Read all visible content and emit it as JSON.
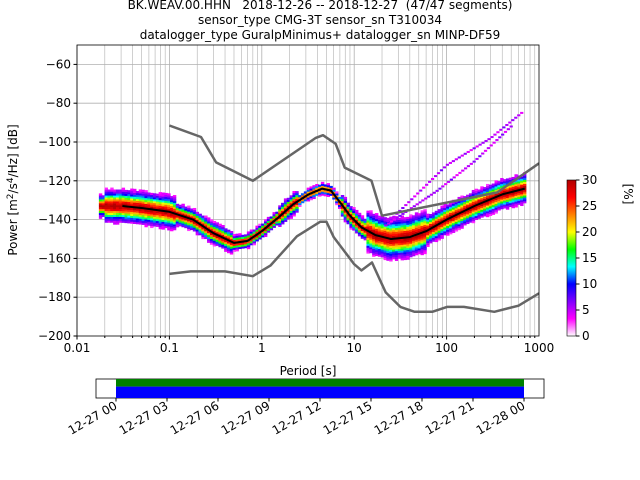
{
  "chart_data": {
    "type": "heatmap",
    "title_lines": [
      "BK.WEAV.00.HHN   2018-12-26 -- 2018-12-27  (47/47 segments)",
      "sensor_type CMG-3T sensor_sn T310034",
      "datalogger_type GuralpMinimus+ datalogger_sn MINP-DF59"
    ],
    "xlabel": "Period [s]",
    "ylabel_parts": [
      "Power [m",
      "2",
      "/s",
      "4",
      "/Hz] [dB]"
    ],
    "x_scale": "log",
    "xlim": [
      0.01,
      1000
    ],
    "ylim": [
      -200,
      -50
    ],
    "x_ticks": [
      {
        "value": 0.01,
        "label": "0.01"
      },
      {
        "value": 0.1,
        "label": "0.1"
      },
      {
        "value": 1,
        "label": "1"
      },
      {
        "value": 10,
        "label": "10"
      },
      {
        "value": 100,
        "label": "100"
      },
      {
        "value": 1000,
        "label": "1000"
      }
    ],
    "y_ticks": [
      {
        "value": -60,
        "label": "−60"
      },
      {
        "value": -80,
        "label": "−80"
      },
      {
        "value": -100,
        "label": "−100"
      },
      {
        "value": -120,
        "label": "−120"
      },
      {
        "value": -140,
        "label": "−140"
      },
      {
        "value": -160,
        "label": "−160"
      },
      {
        "value": -180,
        "label": "−180"
      },
      {
        "value": -200,
        "label": "−200"
      }
    ],
    "grid": true,
    "colorbar": {
      "label": "[%]",
      "range": [
        0,
        30
      ],
      "ticks": [
        {
          "value": 0,
          "label": "0"
        },
        {
          "value": 5,
          "label": "5"
        },
        {
          "value": 10,
          "label": "10"
        },
        {
          "value": 15,
          "label": "15"
        },
        {
          "value": 20,
          "label": "20"
        },
        {
          "value": 25,
          "label": "25"
        },
        {
          "value": 30,
          "label": "30"
        }
      ],
      "colors": [
        "#ffffff",
        "#ff00ff",
        "#8000ff",
        "#0000ff",
        "#00ffff",
        "#00ff00",
        "#ffff00",
        "#ff8000",
        "#ff0000",
        "#b00000"
      ]
    },
    "series": [
      {
        "role": "noise-model-high",
        "color": "#666666",
        "points": [
          [
            0.1,
            -91.5
          ],
          [
            0.22,
            -97.4
          ],
          [
            0.32,
            -110.5
          ],
          [
            0.8,
            -120
          ],
          [
            3.8,
            -98
          ],
          [
            4.6,
            -96.5
          ],
          [
            6.3,
            -101
          ],
          [
            7.9,
            -113.2
          ],
          [
            15.4,
            -120
          ],
          [
            20,
            -138
          ],
          [
            354.8,
            -126
          ],
          [
            1000,
            -111
          ]
        ]
      },
      {
        "role": "noise-model-low",
        "color": "#666666",
        "points": [
          [
            0.1,
            -168
          ],
          [
            0.17,
            -166.7
          ],
          [
            0.4,
            -166.7
          ],
          [
            0.8,
            -169.2
          ],
          [
            1.24,
            -163.7
          ],
          [
            2.4,
            -148.6
          ],
          [
            4.3,
            -141.1
          ],
          [
            5.0,
            -141.1
          ],
          [
            6.0,
            -149
          ],
          [
            10.0,
            -163
          ],
          [
            12.0,
            -166.2
          ],
          [
            15.6,
            -162.1
          ],
          [
            21.9,
            -177.5
          ],
          [
            31.6,
            -185
          ],
          [
            45,
            -187.5
          ],
          [
            70,
            -187.5
          ],
          [
            101,
            -185
          ],
          [
            154,
            -185
          ],
          [
            328,
            -187.5
          ],
          [
            600,
            -184.4
          ],
          [
            1000,
            -178
          ]
        ]
      },
      {
        "role": "mode",
        "color": "#000000",
        "points": [
          [
            0.031,
            -133
          ],
          [
            0.05,
            -134
          ],
          [
            0.1,
            -136
          ],
          [
            0.18,
            -140
          ],
          [
            0.3,
            -147
          ],
          [
            0.5,
            -152
          ],
          [
            0.7,
            -151
          ],
          [
            1.0,
            -146
          ],
          [
            1.5,
            -139
          ],
          [
            2.2,
            -132
          ],
          [
            3.2,
            -127
          ],
          [
            4.5,
            -124
          ],
          [
            5.6,
            -125
          ],
          [
            7.0,
            -131
          ],
          [
            9.0,
            -138
          ],
          [
            12.0,
            -144
          ],
          [
            17.0,
            -148
          ],
          [
            25.0,
            -150
          ],
          [
            40.0,
            -149
          ],
          [
            60.0,
            -146
          ],
          [
            100.0,
            -140
          ],
          [
            200.0,
            -133
          ],
          [
            400.0,
            -127
          ],
          [
            700.0,
            -124
          ]
        ]
      }
    ],
    "time_axis": {
      "tick_labels": [
        "12-27 00",
        "12-27 03",
        "12-27 06",
        "12-27 09",
        "12-27 12",
        "12-27 15",
        "12-27 18",
        "12-27 21",
        "12-28 00"
      ],
      "coverage_colors": [
        "#008000",
        "#0000ff"
      ]
    }
  }
}
